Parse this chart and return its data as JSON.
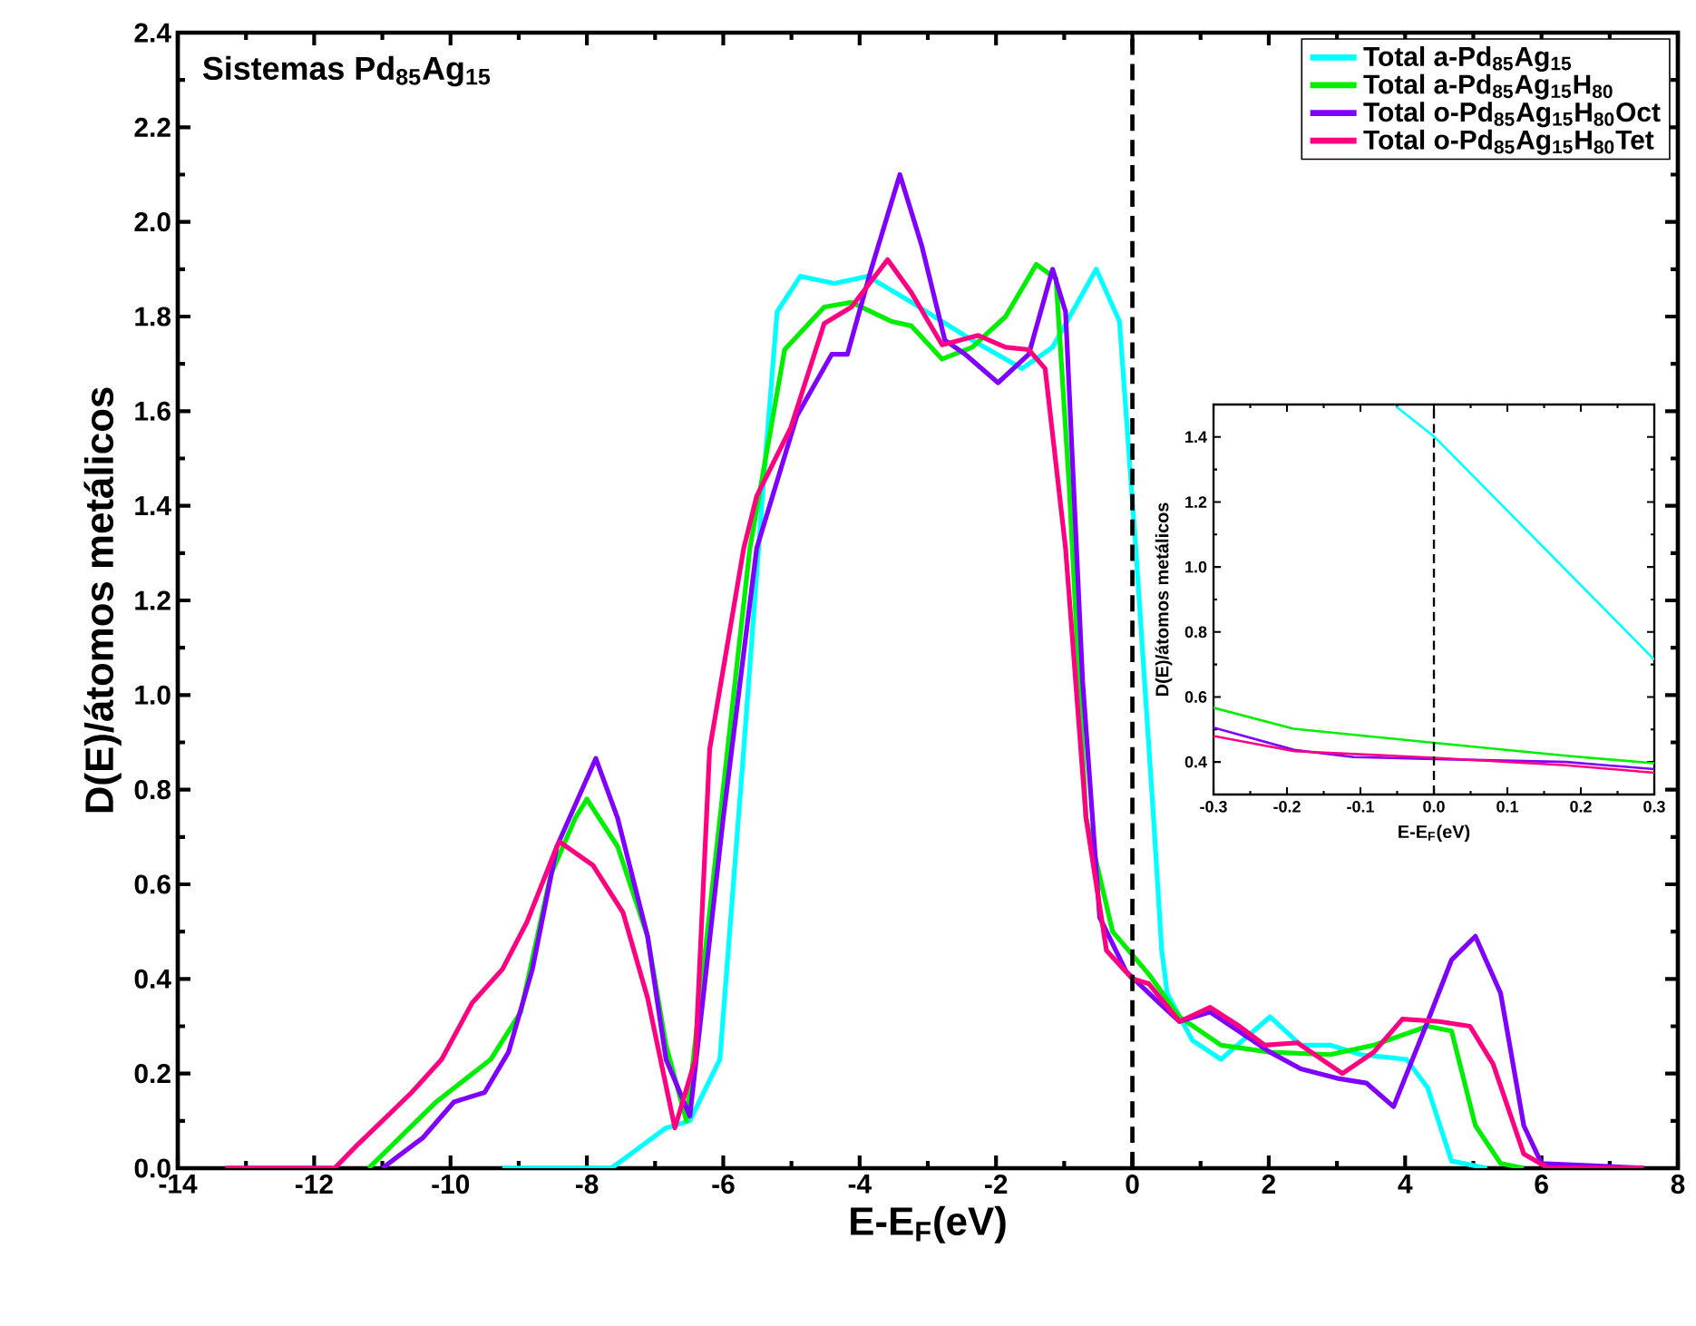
{
  "chart_data": [
    {
      "type": "line",
      "title": "Sistemas Pd$_{85}$Ag$_{15}$",
      "xlabel": "E-E$_{F}$(eV)",
      "ylabel": "D(E)/átomos metálicos",
      "xlim": [
        -14,
        8
      ],
      "ylim": [
        0,
        2.4
      ],
      "xticks": [
        -14,
        -12,
        -10,
        -8,
        -6,
        -4,
        -2,
        0,
        2,
        4,
        6,
        8
      ],
      "yticks": [
        {
          "value": 0,
          "label": "0.0"
        },
        {
          "value": 0.2,
          "label": "0.2"
        },
        {
          "value": 0.4,
          "label": "0.4"
        },
        {
          "value": 0.6,
          "label": "0.6"
        },
        {
          "value": 0.8,
          "label": "0.8"
        },
        {
          "value": 1.0,
          "label": "1.0"
        },
        {
          "value": 1.2,
          "label": "1.2"
        },
        {
          "value": 1.4,
          "label": "1.4"
        },
        {
          "value": 1.6,
          "label": "1.6"
        },
        {
          "value": 1.8,
          "label": "1.8"
        },
        {
          "value": 2.0,
          "label": "2.0"
        },
        {
          "value": 2.2,
          "label": "2.2"
        },
        {
          "value": 2.4,
          "label": "2.4"
        }
      ],
      "legend": "top right",
      "ref_lines": [
        {
          "axis": "x",
          "value": 0,
          "line_style": "dashed",
          "color": "#000000"
        }
      ],
      "series": [
        {
          "name": "Total a-Pd$_{85}$Ag$_{15}$",
          "color": "#00ffff",
          "x": [
            -9.24,
            -7.64,
            -6.84,
            -6.49,
            -6.05,
            -5.7,
            -5.41,
            -5.21,
            -4.87,
            -4.37,
            -3.88,
            -3.24,
            -2.35,
            -1.62,
            -1.17,
            -0.53,
            -0.19,
            0.05,
            0.31,
            0.43,
            0.51,
            0.88,
            1.3,
            2.02,
            2.47,
            2.9,
            3.35,
            4.02,
            4.33,
            4.68,
            5.2
          ],
          "values": [
            0,
            0,
            0.085,
            0.1,
            0.23,
            0.885,
            1.45,
            1.81,
            1.885,
            1.87,
            1.885,
            1.83,
            1.75,
            1.69,
            1.735,
            1.9,
            1.79,
            1.31,
            0.74,
            0.46,
            0.37,
            0.27,
            0.23,
            0.32,
            0.26,
            0.26,
            0.24,
            0.23,
            0.17,
            0.015,
            0
          ]
        },
        {
          "name": "Total a-Pd$_{85}$Ag$_{15}$H$_{80}$",
          "color": "#00ee00",
          "x": [
            -11.2,
            -10.21,
            -9.41,
            -8.97,
            -8.53,
            -8.17,
            -8.0,
            -7.55,
            -7.11,
            -6.84,
            -6.54,
            -5.61,
            -5.1,
            -4.52,
            -4.12,
            -3.54,
            -3.24,
            -2.79,
            -2.35,
            -1.86,
            -1.41,
            -1.12,
            -0.93,
            -0.68,
            -0.29,
            0.24,
            0.69,
            1.3,
            2.02,
            2.9,
            3.54,
            4.33,
            4.68,
            5.03,
            5.4,
            5.74
          ],
          "values": [
            0,
            0.14,
            0.23,
            0.33,
            0.62,
            0.74,
            0.78,
            0.68,
            0.49,
            0.26,
            0.1,
            1.31,
            1.73,
            1.82,
            1.83,
            1.79,
            1.78,
            1.71,
            1.735,
            1.8,
            1.91,
            1.88,
            1.45,
            0.74,
            0.5,
            0.41,
            0.32,
            0.26,
            0.245,
            0.24,
            0.26,
            0.3,
            0.29,
            0.09,
            0.01,
            0
          ]
        },
        {
          "name": "Total o-Pd$_{85}$Ag$_{15}$H$_{80}$Oct",
          "color": "#8000ff",
          "x": [
            -11.0,
            -10.4,
            -9.95,
            -9.5,
            -9.15,
            -8.8,
            -8.44,
            -7.87,
            -7.55,
            -7.11,
            -6.84,
            -6.49,
            -6.0,
            -5.51,
            -4.92,
            -4.41,
            -4.18,
            -3.83,
            -3.41,
            -3.09,
            -2.75,
            -2.45,
            -1.97,
            -1.52,
            -1.17,
            -0.98,
            -0.73,
            -0.48,
            -0.09,
            0.24,
            0.69,
            1.14,
            2.02,
            2.47,
            3.0,
            3.43,
            3.83,
            4.33,
            4.68,
            5.03,
            5.4,
            5.74,
            6.0,
            7.5
          ],
          "values": [
            0,
            0.065,
            0.14,
            0.16,
            0.245,
            0.42,
            0.68,
            0.866,
            0.74,
            0.49,
            0.23,
            0.11,
            0.74,
            1.31,
            1.59,
            1.72,
            1.72,
            1.9,
            2.1,
            1.95,
            1.75,
            1.72,
            1.66,
            1.72,
            1.9,
            1.81,
            1.03,
            0.53,
            0.415,
            0.37,
            0.31,
            0.33,
            0.245,
            0.21,
            0.19,
            0.18,
            0.13,
            0.31,
            0.44,
            0.49,
            0.37,
            0.09,
            0.01,
            0
          ]
        },
        {
          "name": "Total o-Pd$_{85}$Ag$_{15}$H$_{80}$Tet",
          "color": "#ff0080",
          "x": [
            -13.3,
            -11.7,
            -11.36,
            -11.0,
            -10.57,
            -10.13,
            -9.68,
            -9.24,
            -8.88,
            -8.44,
            -8.4,
            -7.91,
            -7.47,
            -7.11,
            -6.71,
            -6.41,
            -6.2,
            -5.7,
            -5.51,
            -5.01,
            -4.52,
            -4.12,
            -3.59,
            -3.24,
            -2.79,
            -2.26,
            -1.86,
            -1.52,
            -1.28,
            -0.98,
            -0.68,
            -0.38,
            0,
            0.24,
            0.69,
            1.14,
            1.57,
            1.94,
            2.42,
            3.08,
            3.54,
            3.96,
            4.5,
            4.95,
            5.29,
            5.74,
            6.1,
            7.5
          ],
          "values": [
            0,
            0,
            0.05,
            0.1,
            0.16,
            0.23,
            0.35,
            0.42,
            0.52,
            0.68,
            0.69,
            0.64,
            0.54,
            0.36,
            0.085,
            0.23,
            0.885,
            1.31,
            1.42,
            1.565,
            1.785,
            1.82,
            1.92,
            1.85,
            1.74,
            1.76,
            1.735,
            1.73,
            1.69,
            1.31,
            0.74,
            0.46,
            0.4,
            0.39,
            0.31,
            0.34,
            0.3,
            0.26,
            0.265,
            0.2,
            0.245,
            0.315,
            0.31,
            0.3,
            0.22,
            0.03,
            0,
            0
          ]
        }
      ]
    },
    {
      "type": "line",
      "xlabel": "E-E$_{F}$(eV)",
      "ylabel": "D(E)/átomos metálicos",
      "xlim": [
        -0.3,
        0.3
      ],
      "ylim": [
        0.3,
        1.5
      ],
      "xticks": [
        -0.3,
        -0.2,
        -0.1,
        {
          "value": 0,
          "label": "0.0"
        },
        0.1,
        0.2,
        0.3
      ],
      "yticks": [
        0.4,
        0.6,
        0.8,
        {
          "value": 1.0,
          "label": "1.0"
        },
        1.2,
        1.4
      ],
      "ref_lines": [
        {
          "axis": "x",
          "value": 0,
          "line_style": "dashed",
          "color": "#000000"
        }
      ],
      "series": [
        {
          "color": "#00ffff",
          "x": [
            -0.051,
            0.001,
            0.098,
            0.18,
            0.3
          ],
          "values": [
            1.493,
            1.4,
            1.178,
            0.99,
            0.715
          ]
        },
        {
          "color": "#00ee00",
          "x": [
            -0.3,
            -0.191,
            0,
            0.18,
            0.3
          ],
          "values": [
            0.567,
            0.502,
            0.459,
            0.419,
            0.396
          ]
        },
        {
          "color": "#8000ff",
          "x": [
            -0.3,
            -0.19,
            -0.109,
            0,
            0.18,
            0.3
          ],
          "values": [
            0.506,
            0.437,
            0.415,
            0.409,
            0.4,
            0.378
          ]
        },
        {
          "color": "#ff0080",
          "x": [
            -0.3,
            -0.19,
            0,
            0.18,
            0.3
          ],
          "values": [
            0.48,
            0.433,
            0.413,
            0.39,
            0.367
          ]
        }
      ]
    }
  ]
}
